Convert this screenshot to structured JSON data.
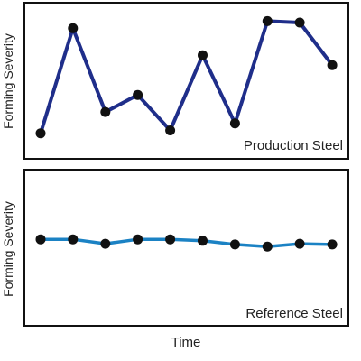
{
  "chart_data": [
    {
      "type": "line",
      "xlabel": "",
      "ylabel": "Forming Severity",
      "series": [
        {
          "name": "Production Steel",
          "color": "#1f2e8a",
          "x": [
            1,
            2,
            3,
            4,
            5,
            6,
            7,
            8,
            9,
            10
          ],
          "values": [
            18,
            92,
            33,
            45,
            20,
            73,
            25,
            97,
            96,
            66
          ]
        }
      ],
      "annotations": [
        "Production Steel"
      ],
      "xlim": [
        0.5,
        10.5
      ],
      "ylim": [
        0,
        110
      ],
      "grid": false,
      "ticks": false
    },
    {
      "type": "line",
      "xlabel": "Time",
      "ylabel": "Forming Severity",
      "series": [
        {
          "name": "Reference Steel",
          "color": "#1b82c4",
          "x": [
            1,
            2,
            3,
            4,
            5,
            6,
            7,
            8,
            9,
            10
          ],
          "values": [
            60.9,
            60.9,
            57.8,
            60.9,
            60.9,
            59.9,
            57.3,
            55.8,
            57.8,
            57.3
          ]
        }
      ],
      "annotations": [
        "Reference Steel"
      ],
      "xlim": [
        0.5,
        10.5
      ],
      "ylim": [
        0,
        110
      ],
      "grid": false,
      "ticks": false
    }
  ]
}
